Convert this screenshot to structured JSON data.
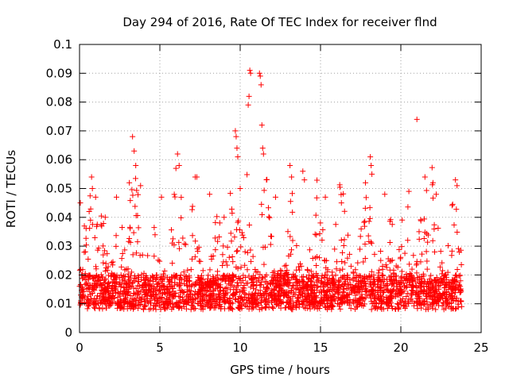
{
  "chart_data": {
    "type": "scatter",
    "title": "Day 294 of 2016, Rate Of TEC Index for receiver flnd",
    "xlabel": "GPS time / hours",
    "ylabel": "ROTI / TECUs",
    "xlim": [
      0,
      25
    ],
    "ylim": [
      0,
      0.1
    ],
    "xticks": [
      0,
      5,
      10,
      15,
      20,
      25
    ],
    "xtick_labels": [
      "0",
      "5",
      "10",
      "15",
      "20",
      "25"
    ],
    "yticks": [
      0,
      0.01,
      0.02,
      0.03,
      0.04,
      0.05,
      0.06,
      0.07,
      0.08,
      0.09,
      0.1
    ],
    "ytick_labels": [
      "0",
      "0.01",
      "0.02",
      "0.03",
      "0.04",
      "0.05",
      "0.06",
      "0.07",
      "0.08",
      "0.09",
      "0.1"
    ],
    "grid": true,
    "marker": "+",
    "color": "#ff0000",
    "series": [
      {
        "name": "ROTI",
        "points": [
          [
            0.05,
            0.045
          ],
          [
            0.3,
            0.037
          ],
          [
            0.6,
            0.042
          ],
          [
            0.75,
            0.054
          ],
          [
            0.8,
            0.05
          ],
          [
            1.0,
            0.047
          ],
          [
            1.6,
            0.04
          ],
          [
            2.3,
            0.047
          ],
          [
            3.1,
            0.052
          ],
          [
            3.3,
            0.068
          ],
          [
            3.4,
            0.063
          ],
          [
            3.5,
            0.058
          ],
          [
            3.8,
            0.051
          ],
          [
            5.1,
            0.047
          ],
          [
            6.0,
            0.057
          ],
          [
            6.1,
            0.062
          ],
          [
            6.2,
            0.058
          ],
          [
            7.2,
            0.054
          ],
          [
            7.3,
            0.054
          ],
          [
            8.1,
            0.048
          ],
          [
            9.0,
            0.04
          ],
          [
            9.7,
            0.07
          ],
          [
            9.75,
            0.068
          ],
          [
            9.8,
            0.064
          ],
          [
            9.85,
            0.061
          ],
          [
            10.0,
            0.05
          ],
          [
            10.5,
            0.079
          ],
          [
            10.55,
            0.082
          ],
          [
            10.6,
            0.091
          ],
          [
            10.65,
            0.09
          ],
          [
            11.2,
            0.09
          ],
          [
            11.25,
            0.089
          ],
          [
            11.3,
            0.086
          ],
          [
            11.35,
            0.072
          ],
          [
            11.4,
            0.064
          ],
          [
            11.45,
            0.062
          ],
          [
            12.2,
            0.047
          ],
          [
            13.1,
            0.058
          ],
          [
            13.2,
            0.054
          ],
          [
            13.9,
            0.056
          ],
          [
            14.0,
            0.053
          ],
          [
            15.3,
            0.047
          ],
          [
            16.3,
            0.045
          ],
          [
            17.8,
            0.052
          ],
          [
            18.1,
            0.061
          ],
          [
            18.15,
            0.058
          ],
          [
            18.2,
            0.055
          ],
          [
            19.0,
            0.048
          ],
          [
            20.5,
            0.049
          ],
          [
            21.0,
            0.074
          ],
          [
            21.5,
            0.054
          ],
          [
            22.0,
            0.052
          ],
          [
            22.2,
            0.048
          ],
          [
            23.4,
            0.053
          ],
          [
            23.5,
            0.051
          ]
        ]
      }
    ]
  }
}
